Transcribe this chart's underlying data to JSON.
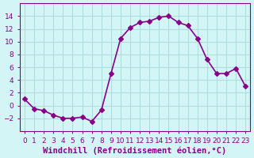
{
  "x": [
    0,
    1,
    2,
    3,
    4,
    5,
    6,
    7,
    8,
    9,
    10,
    11,
    12,
    13,
    14,
    15,
    16,
    17,
    18,
    19,
    20,
    21,
    22,
    23
  ],
  "y": [
    1.0,
    -0.5,
    -0.8,
    -1.5,
    -2.0,
    -2.0,
    -1.8,
    -2.5,
    -0.7,
    5.0,
    10.5,
    12.2,
    13.0,
    13.2,
    13.8,
    14.0,
    13.0,
    12.5,
    10.5,
    7.2,
    5.0,
    5.0,
    5.8,
    3.0
  ],
  "line_color": "#880088",
  "marker": "D",
  "markersize": 3,
  "linewidth": 1.2,
  "xlabel": "Windchill (Refroidissement éolien,°C)",
  "xlabel_fontsize": 7.5,
  "bg_color": "#d4f5f5",
  "grid_color": "#aadddd",
  "ylim": [
    -4,
    16
  ],
  "yticks": [
    -2,
    0,
    2,
    4,
    6,
    8,
    10,
    12,
    14
  ],
  "xticks": [
    0,
    1,
    2,
    3,
    4,
    5,
    6,
    7,
    8,
    9,
    10,
    11,
    12,
    13,
    14,
    15,
    16,
    17,
    18,
    19,
    20,
    21,
    22,
    23
  ],
  "tick_fontsize": 6.5,
  "tick_color": "#880088",
  "axis_color": "#880088"
}
